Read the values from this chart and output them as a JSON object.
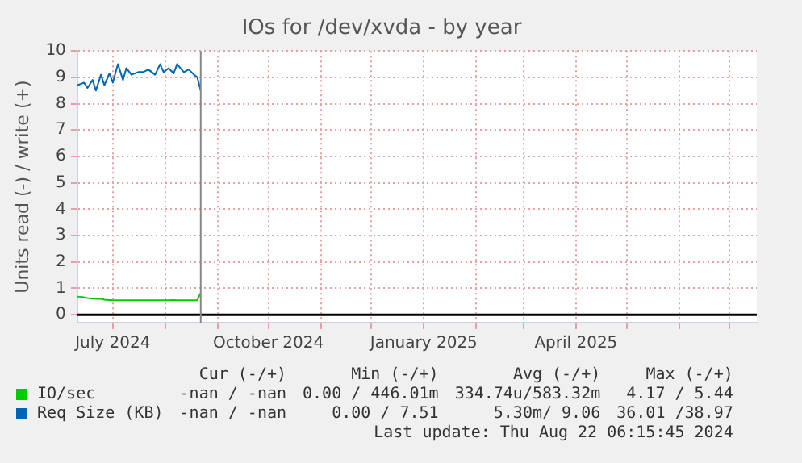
{
  "chart_data": {
    "type": "line",
    "title": "IOs for /dev/xvda - by year",
    "ylabel": "Units read (-) / write (+)",
    "x": [
      "2024-06-10",
      "2024-06-14",
      "2024-06-16",
      "2024-06-19",
      "2024-06-21",
      "2024-06-24",
      "2024-06-26",
      "2024-06-29",
      "2024-07-01",
      "2024-07-04",
      "2024-07-07",
      "2024-07-09",
      "2024-07-12",
      "2024-07-16",
      "2024-07-19",
      "2024-07-22",
      "2024-07-26",
      "2024-07-29",
      "2024-07-31",
      "2024-08-03",
      "2024-08-06",
      "2024-08-08",
      "2024-08-12",
      "2024-08-15",
      "2024-08-18",
      "2024-08-20",
      "2024-08-22"
    ],
    "series": [
      {
        "name": "IO/sec",
        "color": "#00cc00",
        "values": [
          0.69,
          0.66,
          0.63,
          0.62,
          0.6,
          0.6,
          0.57,
          0.56,
          0.55,
          0.55,
          0.55,
          0.55,
          0.55,
          0.55,
          0.55,
          0.55,
          0.55,
          0.55,
          0.55,
          0.55,
          0.56,
          0.55,
          0.55,
          0.55,
          0.55,
          0.55,
          0.83
        ]
      },
      {
        "name": "Req Size (KB)",
        "color": "#0066b3",
        "values": [
          8.7,
          8.8,
          8.6,
          8.9,
          8.5,
          9.1,
          8.7,
          9.15,
          8.8,
          9.5,
          8.9,
          9.35,
          9.1,
          9.2,
          9.2,
          9.3,
          9.1,
          9.5,
          9.2,
          9.35,
          9.15,
          9.5,
          9.2,
          9.3,
          9.1,
          9.0,
          8.5
        ]
      }
    ],
    "xlim": [
      "2024-06-10",
      "2025-07-17"
    ],
    "xticks": [
      {
        "value": "2024-07-01",
        "label": "July 2024"
      },
      {
        "value": "2024-08-01",
        "label": null
      },
      {
        "value": "2024-09-01",
        "label": null
      },
      {
        "value": "2024-10-01",
        "label": "October 2024"
      },
      {
        "value": "2024-11-01",
        "label": null
      },
      {
        "value": "2024-12-01",
        "label": null
      },
      {
        "value": "2025-01-01",
        "label": "January 2025"
      },
      {
        "value": "2025-02-01",
        "label": null
      },
      {
        "value": "2025-03-01",
        "label": null
      },
      {
        "value": "2025-04-01",
        "label": "April 2025"
      },
      {
        "value": "2025-05-01",
        "label": null
      },
      {
        "value": "2025-06-01",
        "label": null
      },
      {
        "value": "2025-07-01",
        "label": null
      }
    ],
    "ylim": [
      -0.3,
      10
    ],
    "yticks": [
      0,
      1,
      2,
      3,
      4,
      5,
      6,
      7,
      8,
      9,
      10
    ],
    "grid": true,
    "legend": "bottom left",
    "ref_lines": [
      {
        "axis": "y",
        "value": 0,
        "color": "#000000"
      },
      {
        "axis": "x",
        "value": "2024-08-22",
        "color": "#888888"
      }
    ],
    "annotations": [
      "Cur (-/+)",
      "Min (-/+)",
      "Avg (-/+)",
      "Max (-/+)",
      "-nan / -nan",
      "0.00 / 446.01m",
      "334.74u/583.32m",
      "4.17 / 5.44",
      "-nan / -nan",
      "0.00 / 7.51",
      "5.30m/ 9.06",
      "36.01 /38.97",
      "Last update: Thu Aug 22 06:15:45 2024"
    ]
  }
}
